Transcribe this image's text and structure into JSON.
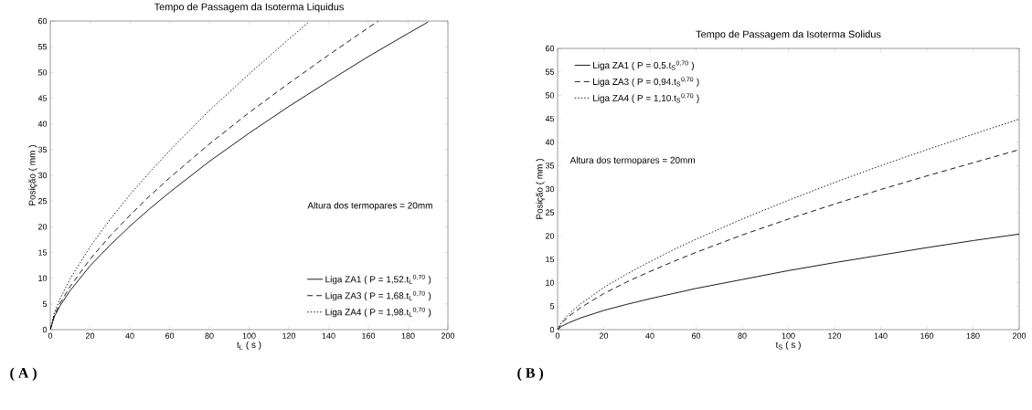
{
  "chart_data": [
    {
      "type": "line",
      "title": "Tempo de Passagem da Isoterma Liquidus",
      "xlabel": "t$_{L}$ ( s )",
      "ylabel": "Posição ( mm )",
      "xlim": [
        0,
        200
      ],
      "ylim": [
        0,
        60
      ],
      "xticks": [
        0,
        20,
        40,
        60,
        80,
        100,
        120,
        140,
        160,
        180,
        200
      ],
      "yticks": [
        0,
        5,
        10,
        15,
        20,
        25,
        30,
        35,
        40,
        45,
        50,
        55,
        60
      ],
      "grid": false,
      "legend": "bottom right",
      "marker": "none",
      "annotations": [
        "Altura dos termopares = 20mm",
        "( A )"
      ],
      "series": [
        {
          "name": "Liga ZA1   ( P = 1,52.t$_{L}$$^{0,70}$ )",
          "color": "#000000",
          "line_style": "solid",
          "x": [
            0,
            2,
            5,
            10,
            20,
            30,
            40,
            50,
            60,
            80,
            100,
            120,
            140,
            160,
            180,
            190
          ],
          "values": [
            0,
            2.5,
            4.7,
            7.6,
            12.4,
            16.4,
            20.1,
            23.5,
            26.7,
            32.7,
            38.2,
            43.4,
            48.3,
            53.1,
            57.6,
            59.8
          ]
        },
        {
          "name": "Liga ZA3   ( P = 1,68.t$_{L}$$^{0,70}$ )",
          "color": "#000000",
          "line_style": "dashed",
          "x": [
            0,
            2,
            5,
            10,
            20,
            30,
            40,
            50,
            60,
            80,
            100,
            120,
            140,
            160,
            165
          ],
          "values": [
            0,
            2.7,
            5.2,
            8.4,
            13.7,
            18.2,
            22.2,
            26.0,
            29.5,
            36.1,
            42.2,
            47.9,
            53.4,
            58.7,
            60
          ]
        },
        {
          "name": "Liga ZA4   ( P = 1,98.t$_{L}$$^{0,70}$ )",
          "color": "#000000",
          "line_style": "dotted",
          "x": [
            0,
            2,
            5,
            10,
            20,
            30,
            40,
            50,
            60,
            80,
            100,
            120,
            130
          ],
          "values": [
            0,
            3.2,
            6.1,
            9.9,
            16.1,
            21.4,
            26.2,
            30.6,
            34.8,
            42.6,
            49.7,
            56.5,
            59.8
          ]
        }
      ]
    },
    {
      "type": "line",
      "title": "Tempo de Passagem da Isoterma Solidus",
      "xlabel": "t$_{S}$ ( s )",
      "ylabel": "Posição ( mm )",
      "xlim": [
        0,
        200
      ],
      "ylim": [
        0,
        60
      ],
      "xticks": [
        0,
        20,
        40,
        60,
        80,
        100,
        120,
        140,
        160,
        180,
        200
      ],
      "yticks": [
        0,
        5,
        10,
        15,
        20,
        25,
        30,
        35,
        40,
        45,
        50,
        55,
        60
      ],
      "grid": false,
      "legend": "top left",
      "marker": "none",
      "annotations": [
        "Altura dos termopares = 20mm",
        "( B )"
      ],
      "series": [
        {
          "name": "Liga ZA1   ( P = 0,5.t$_{S}$$^{0,70}$ )",
          "color": "#000000",
          "line_style": "solid",
          "x": [
            0,
            2,
            5,
            10,
            20,
            30,
            40,
            50,
            60,
            80,
            100,
            120,
            140,
            160,
            180,
            200
          ],
          "values": [
            0,
            0.8,
            1.5,
            2.5,
            4.1,
            5.4,
            6.6,
            7.7,
            8.8,
            10.7,
            12.6,
            14.3,
            15.9,
            17.5,
            19.0,
            20.4
          ]
        },
        {
          "name": "Liga ZA3   ( P = 0,94.t$_{S}$$^{0,70}$ )",
          "color": "#000000",
          "line_style": "dashed",
          "x": [
            0,
            2,
            5,
            10,
            20,
            30,
            40,
            50,
            60,
            80,
            100,
            120,
            140,
            160,
            180,
            200
          ],
          "values": [
            0,
            1.5,
            2.9,
            4.7,
            7.7,
            10.2,
            12.4,
            14.5,
            16.5,
            20.2,
            23.6,
            26.8,
            29.9,
            32.8,
            35.6,
            38.4
          ]
        },
        {
          "name": "Liga ZA4   ( P = 1,10.t$_{S}$$^{0,70}$ )",
          "color": "#000000",
          "line_style": "dotted",
          "x": [
            0,
            2,
            5,
            10,
            20,
            30,
            40,
            50,
            60,
            80,
            100,
            120,
            140,
            160,
            180,
            200
          ],
          "values": [
            0,
            1.8,
            3.4,
            5.5,
            9.0,
            11.9,
            14.5,
            17.0,
            19.3,
            23.6,
            27.6,
            31.4,
            35.0,
            38.4,
            41.7,
            44.9
          ]
        }
      ]
    }
  ]
}
